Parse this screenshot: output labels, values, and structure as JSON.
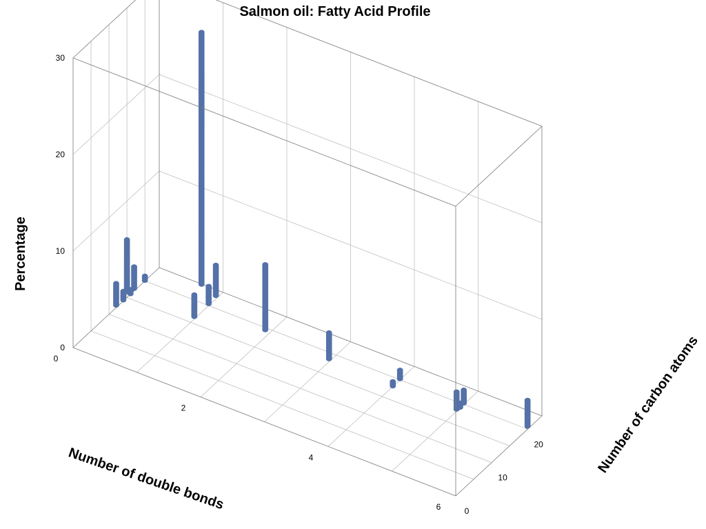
{
  "chart_data": {
    "type": "scatter3d",
    "title": "Salmon oil: Fatty Acid Profile",
    "xlabel": "Number of double bonds",
    "ylabel": "Number of carbon atoms",
    "zlabel": "Percentage",
    "xlim": [
      0,
      6
    ],
    "ylim": [
      0,
      24
    ],
    "zlim": [
      0,
      30
    ],
    "xticks": [
      "0",
      "2",
      "4",
      "6"
    ],
    "yticks": [
      "0",
      "10",
      "20"
    ],
    "zticks": [
      "0",
      "10",
      "20",
      "30"
    ],
    "grid": true,
    "point_color": "#5471a8",
    "points": [
      {
        "double_bonds": 0,
        "carbons": 12,
        "percentage": 2.5
      },
      {
        "double_bonds": 0,
        "carbons": 14,
        "percentage": 1.0
      },
      {
        "double_bonds": 0,
        "carbons": 15,
        "percentage": 6.0
      },
      {
        "double_bonds": 0,
        "carbons": 16,
        "percentage": 0.5
      },
      {
        "double_bonds": 0,
        "carbons": 17,
        "percentage": 2.5
      },
      {
        "double_bonds": 0,
        "carbons": 20,
        "percentage": 0.5
      },
      {
        "double_bonds": 1,
        "carbons": 16,
        "percentage": 2.5
      },
      {
        "double_bonds": 1,
        "carbons": 18,
        "percentage": 29.0
      },
      {
        "double_bonds": 1,
        "carbons": 20,
        "percentage": 2.0
      },
      {
        "double_bonds": 1,
        "carbons": 22,
        "percentage": 3.5
      },
      {
        "double_bonds": 2,
        "carbons": 18,
        "percentage": 7.5
      },
      {
        "double_bonds": 3,
        "carbons": 18,
        "percentage": 3.0
      },
      {
        "double_bonds": 4,
        "carbons": 18,
        "percentage": 0.5
      },
      {
        "double_bonds": 4,
        "carbons": 20,
        "percentage": 1.0
      },
      {
        "double_bonds": 5,
        "carbons": 18,
        "percentage": 2.0
      },
      {
        "double_bonds": 5,
        "carbons": 19,
        "percentage": 0.5
      },
      {
        "double_bonds": 5,
        "carbons": 20,
        "percentage": 1.5
      },
      {
        "double_bonds": 6,
        "carbons": 20,
        "percentage": 3.0
      }
    ]
  }
}
